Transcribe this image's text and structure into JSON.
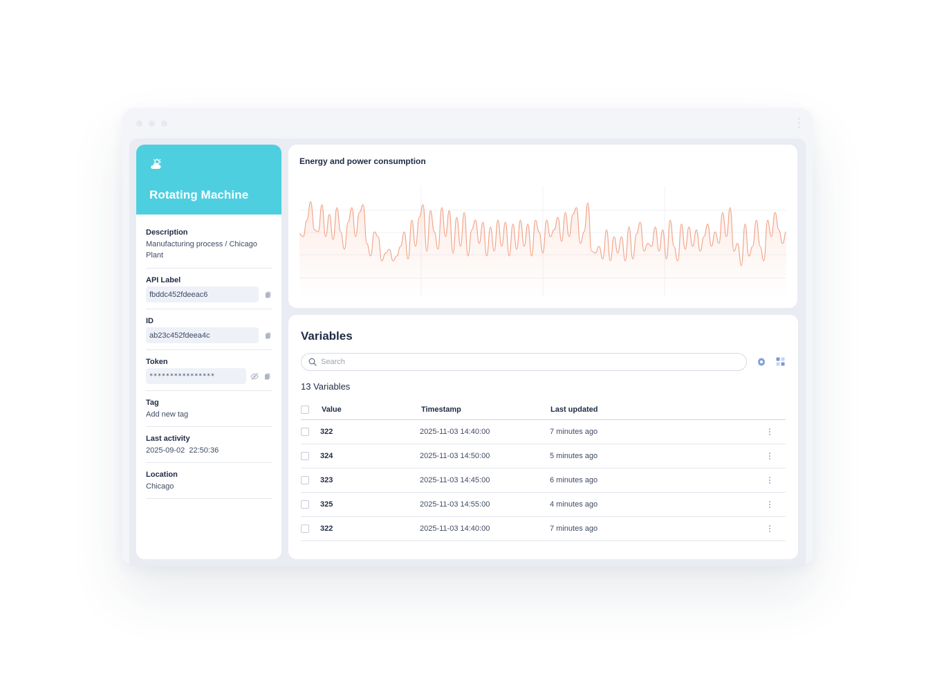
{
  "device": {
    "title": "Rotating Machine",
    "icon": "cloud-sun-icon",
    "accent_color": "#4ecfe0",
    "properties": {
      "description": {
        "label": "Description",
        "value": "Manufacturing process / Chicago Plant"
      },
      "api_label": {
        "label": "API Label",
        "value": "fbddc452fdeeac6"
      },
      "id": {
        "label": "ID",
        "value": "ab23c452fdeea4c"
      },
      "token": {
        "label": "Token",
        "value": "****************"
      },
      "tag": {
        "label": "Tag",
        "value": "Add new tag"
      },
      "last_activity": {
        "label": "Last activity",
        "value": "2025-09-02  22:50:36"
      },
      "location": {
        "label": "Location",
        "value": "Chicago"
      }
    }
  },
  "chart": {
    "title": "Energy and power consumption",
    "line_color": "#f0a184"
  },
  "chart_data": {
    "type": "line",
    "title": "Energy and power consumption",
    "xlabel": "",
    "ylabel": "",
    "grid": true,
    "ylim": [
      0,
      100
    ],
    "series": [
      {
        "values": [
          58,
          55,
          72,
          91,
          62,
          60,
          88,
          55,
          78,
          52,
          85,
          60,
          42,
          70,
          85,
          55,
          80,
          88,
          48,
          35,
          60,
          55,
          30,
          38,
          42,
          30,
          35,
          45,
          60,
          32,
          72,
          45,
          75,
          88,
          40,
          82,
          60,
          42,
          85,
          55,
          82,
          38,
          75,
          45,
          80,
          35,
          62,
          72,
          48,
          70,
          35,
          65,
          40,
          72,
          45,
          70,
          35,
          68,
          42,
          72,
          45,
          68,
          35,
          72,
          60,
          38,
          72,
          55,
          62,
          75,
          50,
          80,
          55,
          78,
          85,
          48,
          60,
          90,
          40,
          38,
          45,
          32,
          62,
          30,
          55,
          38,
          55,
          30,
          65,
          32,
          58,
          70,
          40,
          48,
          45,
          65,
          40,
          62,
          32,
          72,
          45,
          30,
          68,
          42,
          65,
          45,
          62,
          40,
          55,
          68,
          45,
          60,
          48,
          80,
          55,
          85,
          40,
          48,
          25,
          68,
          35,
          45,
          72,
          45,
          30,
          72,
          55,
          80,
          62,
          48,
          60
        ]
      }
    ]
  },
  "variables": {
    "title": "Variables",
    "search_placeholder": "Search",
    "count_label": "13 Variables",
    "columns": {
      "value": "Value",
      "timestamp": "Timestamp",
      "last_updated": "Last updated"
    },
    "rows": [
      {
        "value": "322",
        "timestamp": "2025-11-03 14:40:00",
        "last_updated": "7 minutes ago"
      },
      {
        "value": "324",
        "timestamp": "2025-11-03 14:50:00",
        "last_updated": "5 minutes ago"
      },
      {
        "value": "323",
        "timestamp": "2025-11-03 14:45:00",
        "last_updated": "6 minutes ago"
      },
      {
        "value": "325",
        "timestamp": "2025-11-03 14:55:00",
        "last_updated": "4 minutes ago"
      },
      {
        "value": "322",
        "timestamp": "2025-11-03 14:40:00",
        "last_updated": "7 minutes ago"
      }
    ]
  }
}
